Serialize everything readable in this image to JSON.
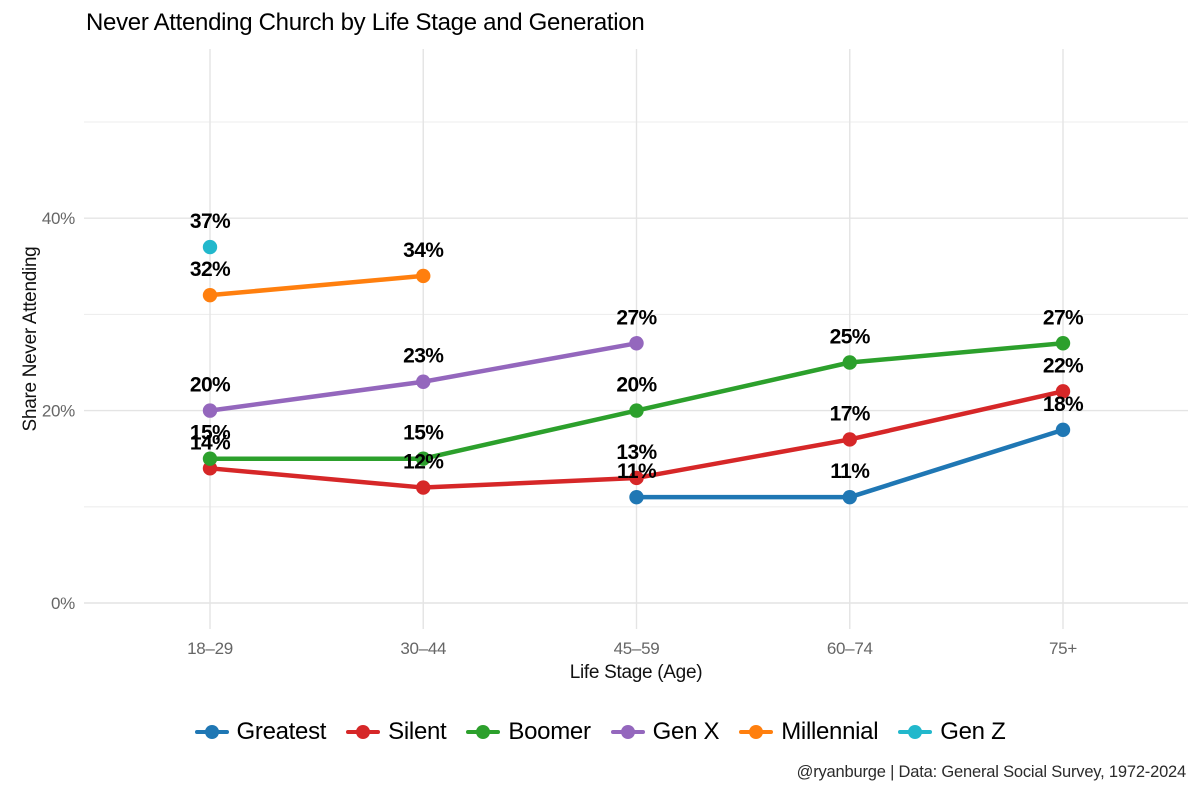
{
  "title": "Never Attending Church by Life Stage and Generation",
  "caption": "@ryanburge | Data: General Social Survey, 1972-2024",
  "chart_data": {
    "type": "line",
    "title": "Never Attending Church by Life Stage and Generation",
    "xlabel": "Life Stage (Age)",
    "ylabel": "Share Never Attending",
    "categories": [
      "18–29",
      "30–44",
      "45–59",
      "60–74",
      "75+"
    ],
    "y_ticks": [
      "0%",
      "20%",
      "40%"
    ],
    "y_tick_values": [
      0,
      20,
      40
    ],
    "y_gridlines": [
      0,
      10,
      20,
      30,
      40,
      50
    ],
    "ylim": [
      -3,
      58
    ],
    "grid": "on",
    "legend_position": "bottom",
    "value_suffix": "%",
    "series": [
      {
        "name": "Greatest",
        "color": "#1f77b4",
        "values": [
          null,
          null,
          11,
          11,
          18
        ]
      },
      {
        "name": "Silent",
        "color": "#d62728",
        "values": [
          14,
          12,
          13,
          17,
          22
        ]
      },
      {
        "name": "Boomer",
        "color": "#2ca02c",
        "values": [
          15,
          15,
          20,
          25,
          27
        ]
      },
      {
        "name": "Gen X",
        "color": "#9467bd",
        "values": [
          20,
          23,
          27,
          null,
          null
        ]
      },
      {
        "name": "Millennial",
        "color": "#ff7f0e",
        "values": [
          32,
          34,
          null,
          null,
          null
        ]
      },
      {
        "name": "Gen Z",
        "color": "#22b8cc",
        "values": [
          37,
          null,
          null,
          null,
          null
        ]
      }
    ]
  }
}
